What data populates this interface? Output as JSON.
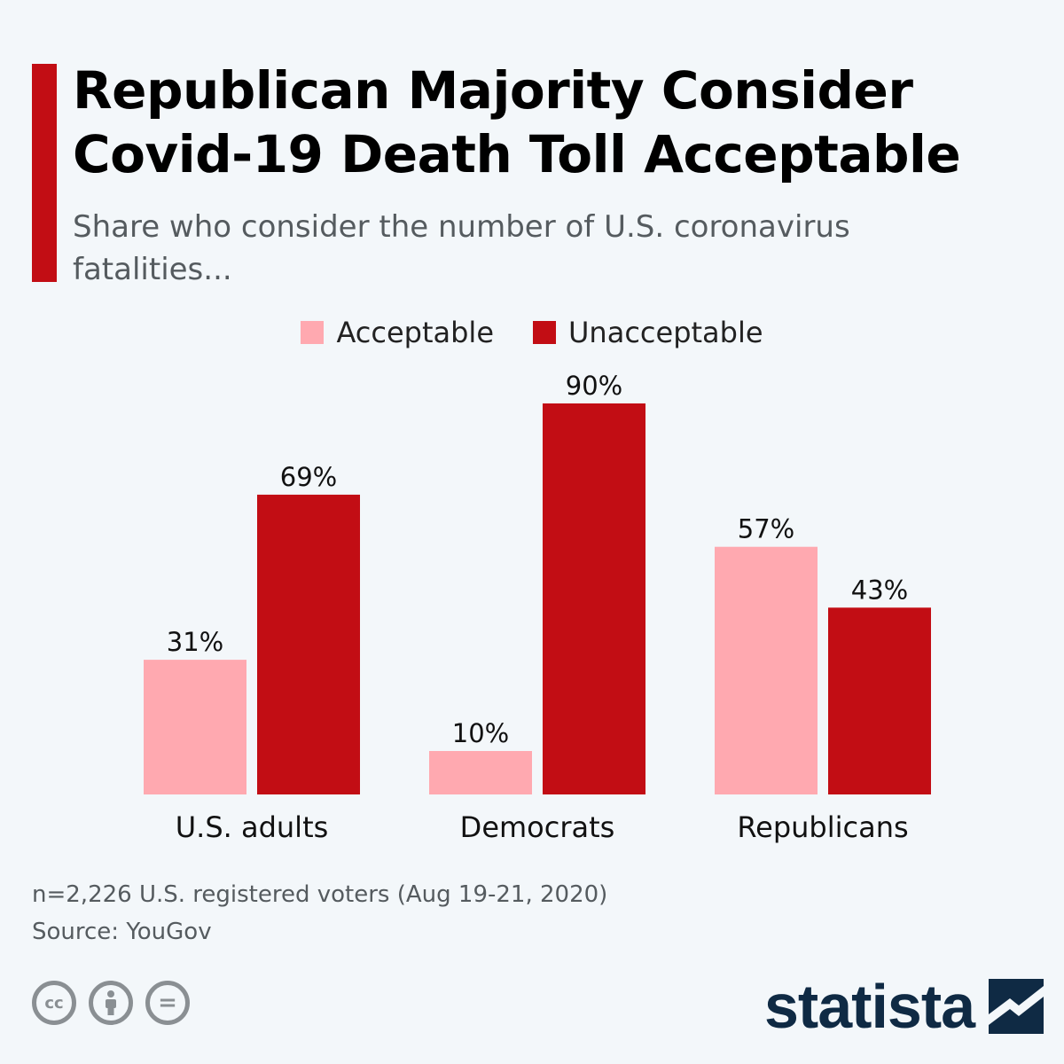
{
  "header": {
    "title_line1": "Republican Majority Consider",
    "title_line2": "Covid-19 Death Toll Acceptable",
    "subtitle": "Share who consider the number of U.S. coronavirus fatalities..."
  },
  "colors": {
    "accent": "#c20d14",
    "acceptable": "#ffa9b0",
    "unacceptable": "#c20d14",
    "brand": "#0f2a44"
  },
  "chart_data": {
    "type": "bar",
    "categories": [
      "U.S. adults",
      "Democrats",
      "Republicans"
    ],
    "series": [
      {
        "name": "Acceptable",
        "values": [
          31,
          10,
          57
        ],
        "labels": [
          "31%",
          "10%",
          "57%"
        ]
      },
      {
        "name": "Unacceptable",
        "values": [
          69,
          90,
          43
        ],
        "labels": [
          "69%",
          "90%",
          "43%"
        ]
      }
    ],
    "title": "Republican Majority Consider Covid-19 Death Toll Acceptable",
    "ylim": [
      0,
      100
    ],
    "grid": false,
    "legend": "top-center"
  },
  "footer": {
    "note": "n=2,226 U.S. registered voters (Aug 19-21, 2020)",
    "source": "Source: YouGov",
    "brand": "statista",
    "license_icons": [
      "cc-icon",
      "attribution-icon",
      "no-derivatives-icon"
    ],
    "cc_glyph": "cc",
    "nd_glyph": "="
  }
}
